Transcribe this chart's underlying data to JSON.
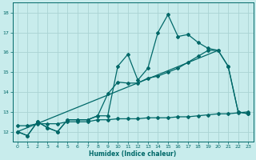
{
  "xlabel": "Humidex (Indice chaleur)",
  "bg_color": "#c8ecec",
  "grid_color": "#aad4d4",
  "line_color": "#006868",
  "xlim": [
    -0.5,
    23.5
  ],
  "ylim": [
    11.5,
    18.5
  ],
  "x_ticks": [
    0,
    1,
    2,
    3,
    4,
    5,
    6,
    7,
    8,
    9,
    10,
    11,
    12,
    13,
    14,
    15,
    16,
    17,
    18,
    19,
    20,
    21,
    22,
    23
  ],
  "y_ticks": [
    12,
    13,
    14,
    15,
    16,
    17,
    18
  ],
  "series1_x": [
    0,
    1,
    2,
    3,
    4,
    5,
    6,
    7,
    8,
    9,
    10,
    11,
    12,
    13,
    14,
    15,
    16,
    17,
    18,
    19,
    20,
    21,
    22,
    23
  ],
  "series1_y": [
    12.0,
    11.8,
    12.5,
    12.2,
    12.0,
    12.6,
    12.6,
    12.6,
    12.8,
    12.8,
    15.3,
    15.9,
    14.6,
    15.2,
    17.0,
    17.9,
    16.8,
    16.9,
    16.5,
    16.2,
    16.1,
    15.3,
    13.0,
    12.9
  ],
  "series2_x": [
    0,
    1,
    2,
    3,
    4,
    5,
    6,
    7,
    8,
    9,
    10,
    11,
    12,
    13,
    14,
    15,
    16,
    17,
    18,
    19,
    20,
    21,
    22,
    23
  ],
  "series2_y": [
    12.0,
    11.8,
    12.5,
    12.2,
    12.0,
    12.6,
    12.6,
    12.6,
    12.8,
    13.9,
    14.5,
    14.45,
    14.45,
    14.7,
    14.8,
    15.0,
    15.2,
    15.5,
    15.8,
    16.1,
    16.1,
    15.3,
    13.0,
    12.9
  ],
  "series3_x": [
    0,
    1,
    2,
    3,
    4,
    5,
    6,
    7,
    8,
    9,
    10,
    11,
    12,
    13,
    14,
    15,
    16,
    17,
    18,
    19,
    20,
    21,
    22,
    23
  ],
  "series3_y": [
    12.3,
    12.3,
    12.4,
    12.4,
    12.4,
    12.5,
    12.5,
    12.5,
    12.6,
    12.6,
    12.65,
    12.65,
    12.65,
    12.7,
    12.7,
    12.7,
    12.75,
    12.75,
    12.8,
    12.85,
    12.9,
    12.9,
    12.95,
    13.0
  ],
  "trend_x": [
    0,
    20
  ],
  "trend_y": [
    12.0,
    16.1
  ]
}
